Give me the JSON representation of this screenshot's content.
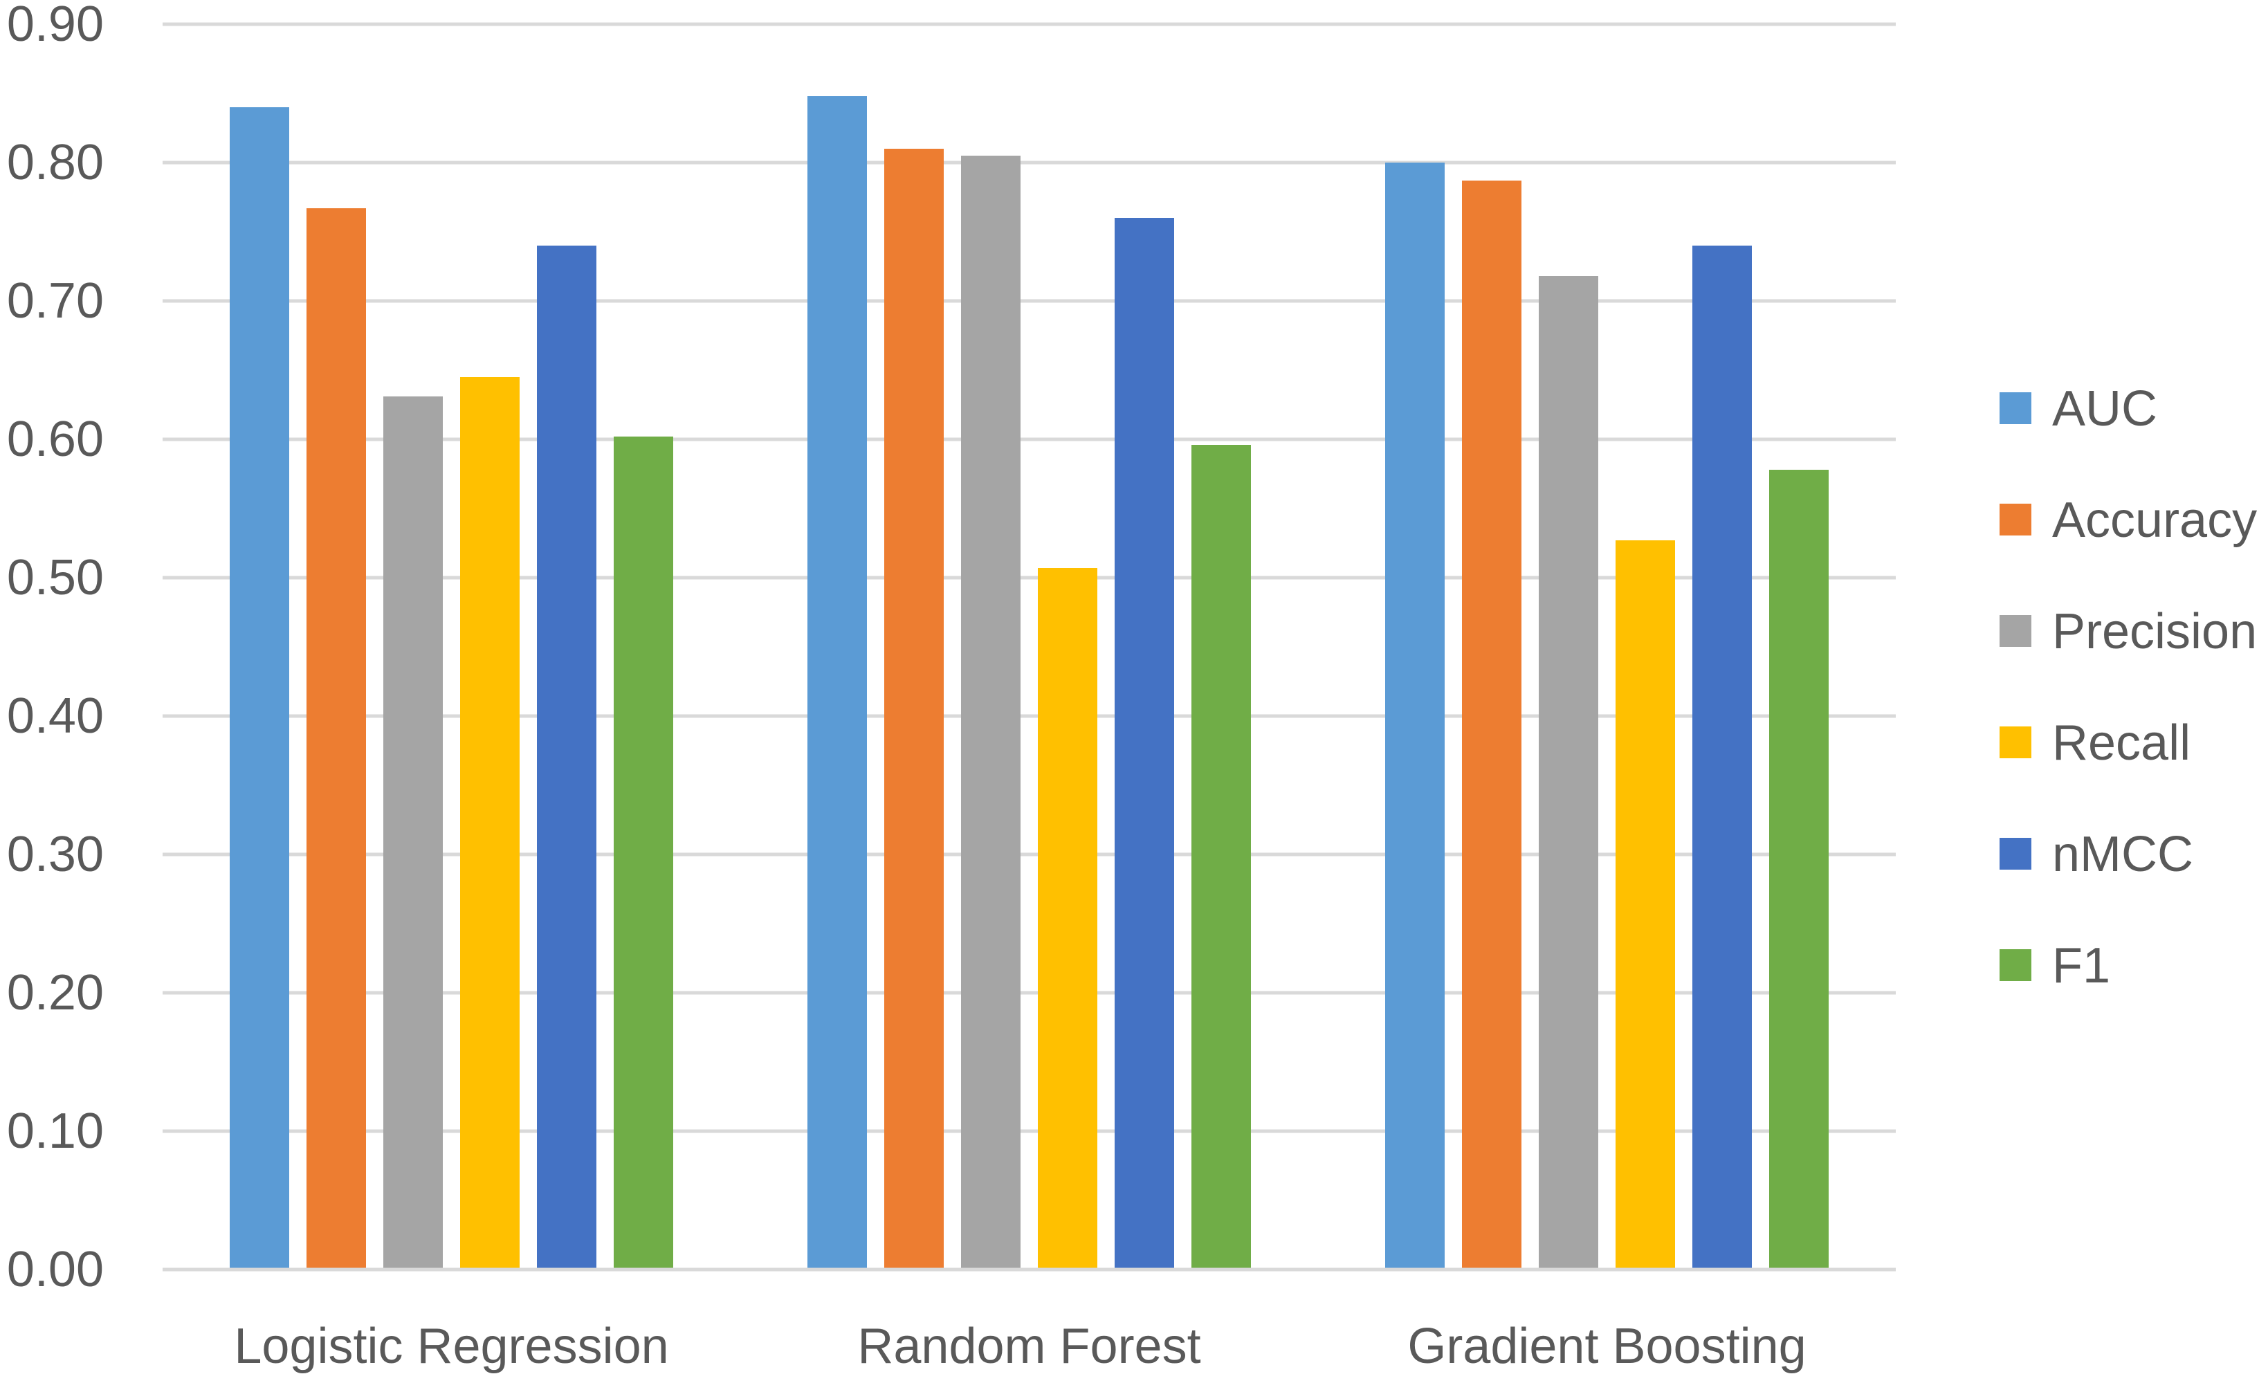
{
  "chart_data": {
    "type": "bar",
    "categories": [
      "Logistic Regression",
      "Random Forest",
      "Gradient Boosting"
    ],
    "series": [
      {
        "name": "AUC",
        "color": "#5B9BD5",
        "values": [
          0.84,
          0.848,
          0.8
        ]
      },
      {
        "name": "Accuracy",
        "color": "#ED7D31",
        "values": [
          0.767,
          0.81,
          0.787
        ]
      },
      {
        "name": "Precision",
        "color": "#A5A5A5",
        "values": [
          0.631,
          0.805,
          0.718
        ]
      },
      {
        "name": "Recall",
        "color": "#FFC000",
        "values": [
          0.645,
          0.507,
          0.527
        ]
      },
      {
        "name": "nMCC",
        "color": "#4472C4",
        "values": [
          0.74,
          0.76,
          0.74
        ]
      },
      {
        "name": "F1",
        "color": "#70AD47",
        "values": [
          0.602,
          0.596,
          0.578
        ]
      }
    ],
    "yticks": [
      "0.00",
      "0.10",
      "0.20",
      "0.30",
      "0.40",
      "0.50",
      "0.60",
      "0.70",
      "0.80",
      "0.90"
    ],
    "ylim": [
      0,
      0.9
    ],
    "grid": true,
    "legend": "right"
  }
}
